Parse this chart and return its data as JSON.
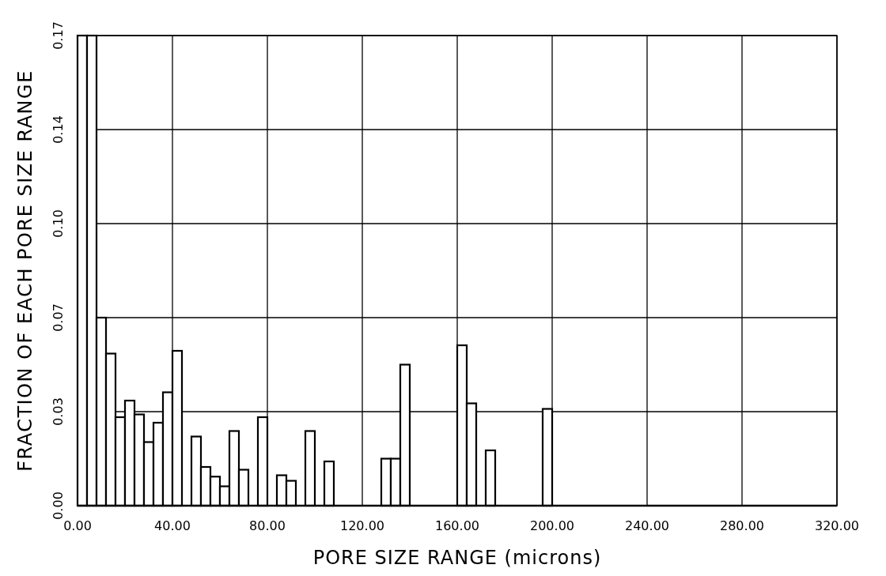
{
  "chart_data": {
    "type": "histogram",
    "xlabel": "PORE SIZE RANGE (microns)",
    "ylabel": "FRACTION OF EACH PORE SIZE RANGE",
    "bins": [
      0,
      4,
      8,
      12,
      16,
      20,
      24,
      28,
      32,
      36,
      40,
      44,
      48,
      52,
      56,
      60,
      64,
      68,
      72,
      76,
      80,
      84,
      88,
      92,
      96,
      100,
      104,
      108,
      112,
      116,
      120,
      124,
      128,
      132,
      136,
      140,
      144,
      148,
      152,
      156,
      160,
      164,
      168,
      172,
      176,
      180,
      184,
      188,
      192,
      196,
      200
    ],
    "values": [
      0.17,
      0.17,
      0.068,
      0.055,
      0.032,
      0.038,
      0.033,
      0.023,
      0.03,
      0.041,
      0.056,
      0,
      0.025,
      0.014,
      0.0105,
      0.007,
      0.027,
      0.013,
      0,
      0.032,
      0,
      0.011,
      0.009,
      0,
      0.027,
      0,
      0.016,
      0,
      0,
      0,
      0,
      0,
      0.017,
      0.017,
      0.051,
      0,
      0,
      0,
      0,
      0,
      0.058,
      0.037,
      0,
      0.02,
      0,
      0,
      0,
      0,
      0,
      0.035
    ],
    "color": "#ffffff",
    "xlim": [
      0,
      320
    ],
    "xticks": [
      {
        "value": 0,
        "label": "0.00"
      },
      {
        "value": 40,
        "label": "40.00"
      },
      {
        "value": 80,
        "label": "80.00"
      },
      {
        "value": 120,
        "label": "120.00"
      },
      {
        "value": 160,
        "label": "160.00"
      },
      {
        "value": 200,
        "label": "200.00"
      },
      {
        "value": 240,
        "label": "240.00"
      },
      {
        "value": 280,
        "label": "280.00"
      },
      {
        "value": 320,
        "label": "320.00"
      }
    ],
    "ylim": [
      0,
      0.17
    ],
    "yticks": [
      {
        "value": 0,
        "label": "0.00"
      },
      {
        "value": 0.034,
        "label": "0.03"
      },
      {
        "value": 0.068,
        "label": "0.07"
      },
      {
        "value": 0.102,
        "label": "0.10"
      },
      {
        "value": 0.136,
        "label": "0.14"
      },
      {
        "value": 0.17,
        "label": "0.17"
      }
    ],
    "grid": true
  }
}
